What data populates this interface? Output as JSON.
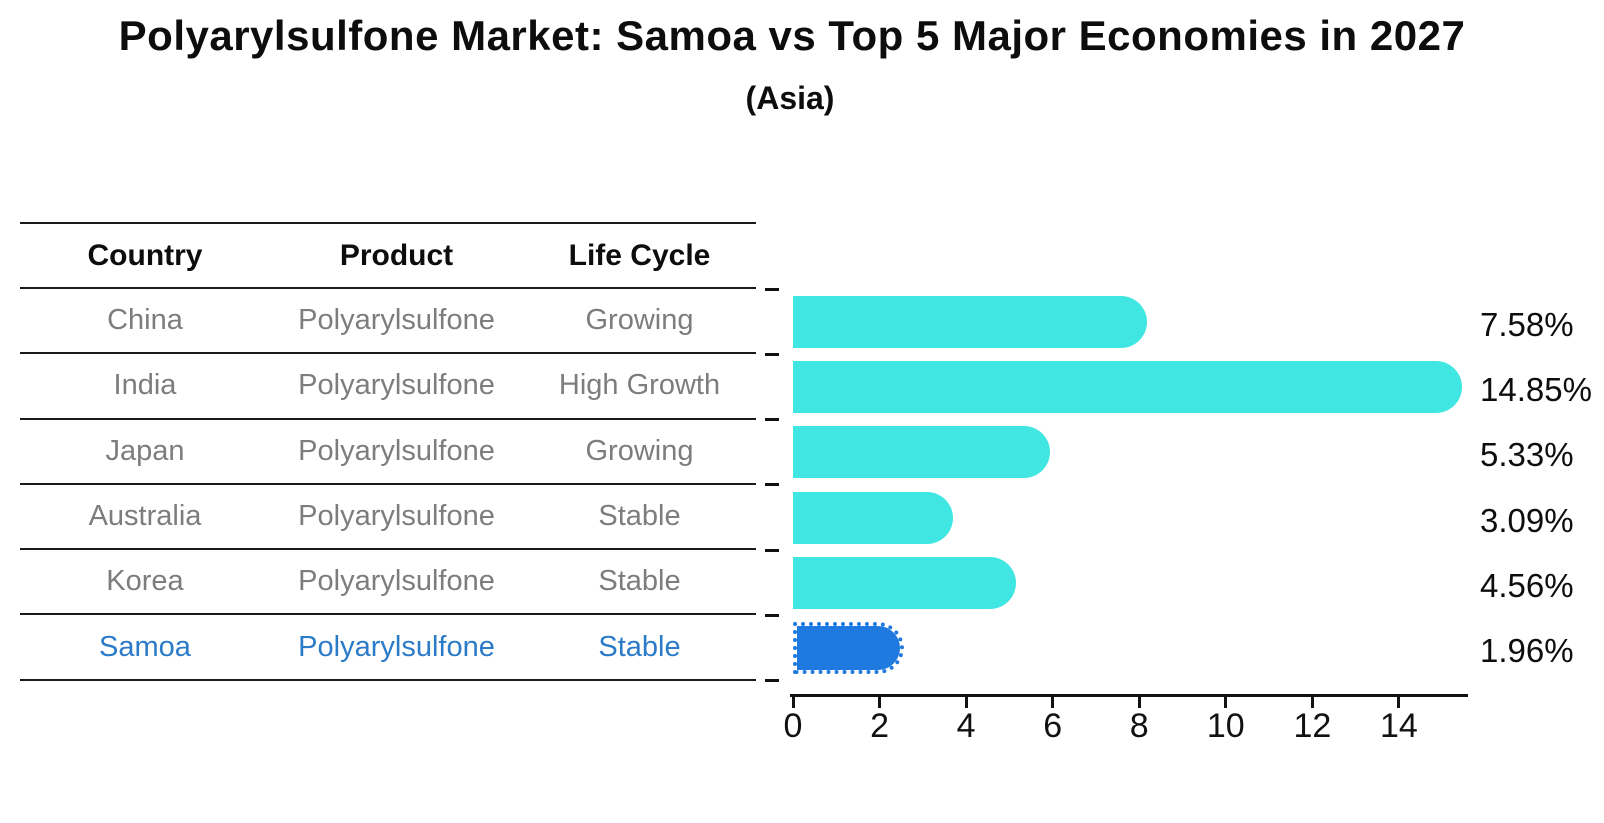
{
  "title": "Polyarylsulfone Market: Samoa vs Top 5 Major Economies in 2027",
  "subtitle": "(Asia)",
  "table": {
    "headers": [
      "Country",
      "Product",
      "Life Cycle"
    ],
    "rows": [
      {
        "country": "China",
        "product": "Polyarylsulfone",
        "life_cycle": "Growing",
        "highlight": false
      },
      {
        "country": "India",
        "product": "Polyarylsulfone",
        "life_cycle": "High Growth",
        "highlight": false
      },
      {
        "country": "Japan",
        "product": "Polyarylsulfone",
        "life_cycle": "Growing",
        "highlight": false
      },
      {
        "country": "Australia",
        "product": "Polyarylsulfone",
        "life_cycle": "Stable",
        "highlight": false
      },
      {
        "country": "Korea",
        "product": "Polyarylsulfone",
        "life_cycle": "Stable",
        "highlight": false
      },
      {
        "country": "Samoa",
        "product": "Polyarylsulfone",
        "life_cycle": "Stable",
        "highlight": true
      }
    ]
  },
  "chart_data": {
    "type": "bar",
    "orientation": "horizontal",
    "categories": [
      "China",
      "India",
      "Japan",
      "Australia",
      "Korea",
      "Samoa"
    ],
    "values": [
      7.58,
      14.85,
      5.33,
      3.09,
      4.56,
      1.96
    ],
    "labels": [
      "7.58%",
      "14.85%",
      "5.33%",
      "3.09%",
      "4.56%",
      "1.96%"
    ],
    "x_ticks": [
      "0",
      "2",
      "4",
      "6",
      "8",
      "10",
      "12",
      "14"
    ],
    "x_tick_values": [
      0,
      2,
      4,
      6,
      8,
      10,
      12,
      14
    ],
    "xlim": [
      0,
      15.6
    ],
    "highlight_index": 5,
    "legend": "none",
    "grid": "off"
  },
  "colors": {
    "bar": "#40e6e1",
    "highlight_bar": "#1f7ae0",
    "highlight_text": "#2b7bc9",
    "row_text": "#7d7d7d",
    "header_text": "#0d0d0d",
    "axis": "#111111"
  }
}
